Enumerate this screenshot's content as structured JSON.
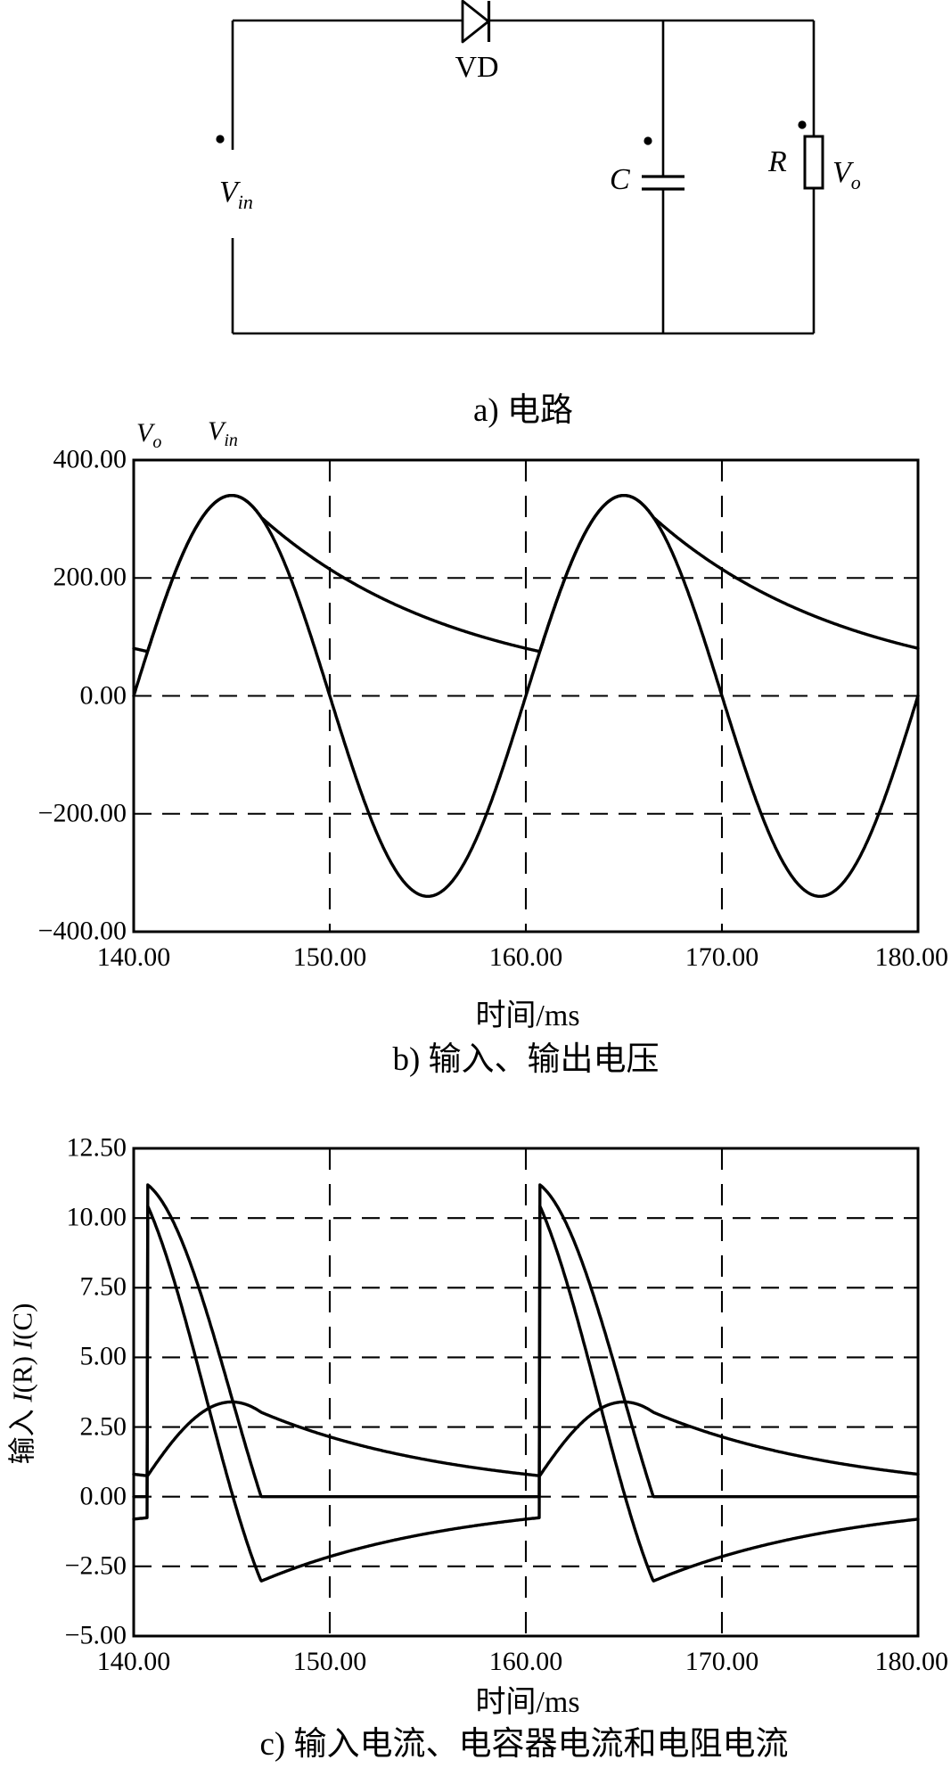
{
  "figure": {
    "circuit": {
      "caption": "a) 电路",
      "labels": {
        "diode": "VD",
        "capacitor": "C",
        "resistor": "R",
        "vin": {
          "sym": "V",
          "sub": "in"
        },
        "vo": {
          "sym": "V",
          "sub": "o"
        }
      }
    }
  },
  "chart_data": [
    {
      "type": "line",
      "panel": "b",
      "caption": "b) 输入、输出电压",
      "xlabel": "时间/ms",
      "xlim": [
        140,
        180
      ],
      "ylim": [
        -400,
        400
      ],
      "x_ticks": [
        "140.00",
        "150.00",
        "160.00",
        "170.00",
        "180.00"
      ],
      "y_ticks": [
        "400.00",
        "200.00",
        "0.00",
        "−200.00",
        "−400.00"
      ],
      "grid": "dashed",
      "legend_position": "above-plot-left",
      "legend": [
        {
          "sym": "V",
          "sub": "o"
        },
        {
          "sym": "V",
          "sub": "in"
        }
      ],
      "series": [
        {
          "name": "V_in 输入电压",
          "model": "sine",
          "amplitude_v": 340,
          "period_ms": 20,
          "zero_crossing_ms": 140
        },
        {
          "name": "V_o 输出电压",
          "model": "peak_detector_output",
          "follows": "V_in",
          "conduction_start_offset_ms": 0.7,
          "conduction_end_offset_ms": 6.5,
          "decay_tau_ms": 10.2,
          "value_at_140ms_v": 81,
          "value_at_conduction_end_v": 303,
          "max_v": 340,
          "min_v": 75
        }
      ]
    },
    {
      "type": "line",
      "panel": "c",
      "caption": "c) 输入电流、电容器电流和电阻电流",
      "xlabel": "时间/ms",
      "ylabel": {
        "prefix": "输入",
        "i1": "I",
        "p1": "(R)",
        "i2": "I",
        "p2": "(C)"
      },
      "xlim": [
        140,
        180
      ],
      "ylim": [
        -5,
        12.5
      ],
      "x_ticks": [
        "140.00",
        "150.00",
        "160.00",
        "170.00",
        "180.00"
      ],
      "y_ticks": [
        "12.50",
        "10.00",
        "7.50",
        "5.00",
        "2.50",
        "0.00",
        "−2.50",
        "−5.00"
      ],
      "grid": "dashed",
      "series": [
        {
          "name": "输入电流",
          "model": "input_current",
          "peak_a": 11.2,
          "conduction_start_offset_ms": 0.7,
          "conduction_end_offset_ms": 6.5,
          "off_value_a": 0
        },
        {
          "name": "电容器电流 I(C)",
          "model": "capacitor_current",
          "jump_to_a": 10.45,
          "min_a": -3.03,
          "value_at_140ms_a": -0.81
        },
        {
          "name": "电阻电流 I(R)",
          "model": "resistor_current",
          "load_resistance_ohm": 100,
          "peak_a": 3.4,
          "value_at_140ms_a": 0.81
        }
      ]
    }
  ]
}
